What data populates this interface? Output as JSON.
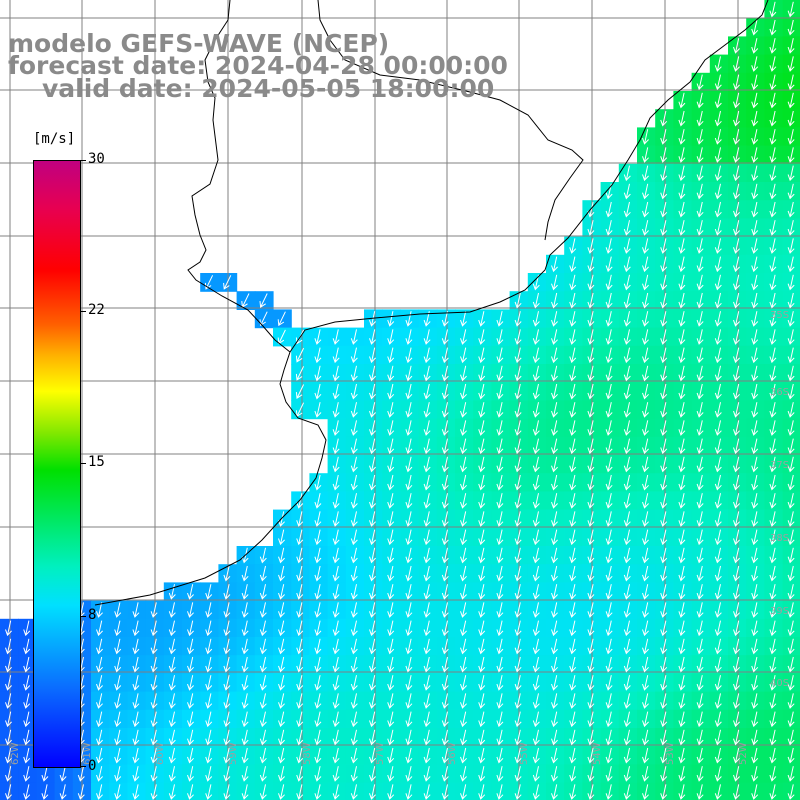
{
  "title": {
    "line1": "modelo GEFS-WAVE (NCEP)",
    "line2": "forecast date: 2024-04-28 00:00:00",
    "line3": "valid date: 2024-05-05 18:00:00"
  },
  "colorbar": {
    "unit": "[m/s]",
    "min": 0,
    "max": 30,
    "ticks": [
      "30",
      "22",
      "15",
      "8",
      "0"
    ]
  },
  "grid": {
    "lat_labels": [
      "35S",
      "36S",
      "37S",
      "38S",
      "39S",
      "40S"
    ],
    "lon_labels": [
      "62W",
      "61W",
      "60W",
      "59W",
      "58W",
      "57W",
      "56W",
      "55W",
      "54W",
      "53W",
      "52W"
    ]
  },
  "colors": {
    "title": "#8a8a8a",
    "coast": "#000000",
    "grid": "#808080",
    "land": "#ffffff",
    "arrow": "#ffffff"
  },
  "field": {
    "wind_direction": "from north",
    "speed_range_ms": [
      3,
      13
    ]
  }
}
